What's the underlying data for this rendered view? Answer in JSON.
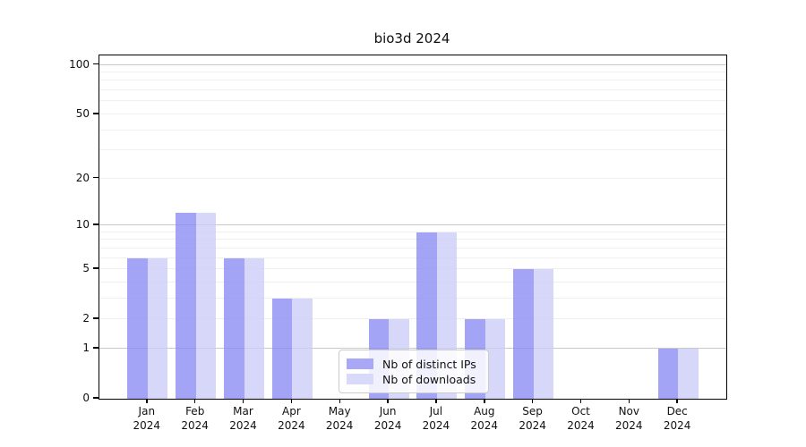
{
  "figure": {
    "title": "bio3d 2024"
  },
  "chart_data": {
    "type": "bar",
    "title": "bio3d 2024",
    "categories": [
      "Jan 2024",
      "Feb 2024",
      "Mar 2024",
      "Apr 2024",
      "May 2024",
      "Jun 2024",
      "Jul 2024",
      "Aug 2024",
      "Sep 2024",
      "Oct 2024",
      "Nov 2024",
      "Dec 2024"
    ],
    "series": [
      {
        "name": "Nb of distinct IPs",
        "color": "rgba(139,139,244,0.78)",
        "solid_color": "#a8a8f7",
        "values": [
          6,
          12,
          6,
          3,
          0,
          2,
          9,
          2,
          5,
          0,
          0,
          1
        ]
      },
      {
        "name": "Nb of downloads",
        "color": "rgba(204,204,247,0.78)",
        "solid_color": "#d9d9f9",
        "values": [
          6,
          12,
          6,
          3,
          0,
          2,
          9,
          2,
          5,
          0,
          0,
          1
        ]
      }
    ],
    "xlabel": "",
    "ylabel": "",
    "yscale": "log1p",
    "ylim": [
      0,
      114
    ],
    "yticks": [
      0,
      1,
      2,
      5,
      10,
      20,
      50,
      100
    ],
    "grid": {
      "on": true,
      "major_lines": [
        1,
        10,
        100
      ],
      "minor_lines": [
        2,
        3,
        4,
        5,
        6,
        7,
        8,
        9,
        20,
        30,
        40,
        50,
        60,
        70,
        80,
        90
      ]
    },
    "legend": {
      "position": "lower center",
      "entries": [
        "Nb of distinct IPs",
        "Nb of downloads"
      ]
    }
  },
  "colors": {
    "major_grid": "#c9c9c9",
    "minor_grid": "#efefef",
    "axis": "#000000",
    "background": "#ffffff",
    "bar_distinct_ips": "#a8a8f7",
    "bar_downloads": "#d9d9f9"
  }
}
